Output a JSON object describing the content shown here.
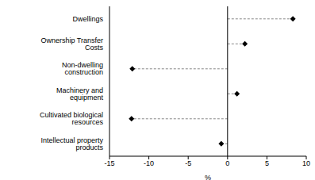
{
  "chart_data": {
    "type": "dot",
    "orientation": "horizontal",
    "categories": [
      "Dwellings",
      "Ownership Transfer Costs",
      "Non-dwelling construction",
      "Machinery and equipment",
      "Cultivated biological resources",
      "Intellectual property products"
    ],
    "values": [
      8.3,
      2.2,
      -12.1,
      1.2,
      -12.2,
      -0.8
    ],
    "color": "#000000",
    "marker": "diamond",
    "line_style": "dashed",
    "x_label": "%",
    "xlim": [
      -15,
      10
    ],
    "xticks": [
      -15,
      -10,
      -5,
      0,
      5,
      10
    ]
  }
}
